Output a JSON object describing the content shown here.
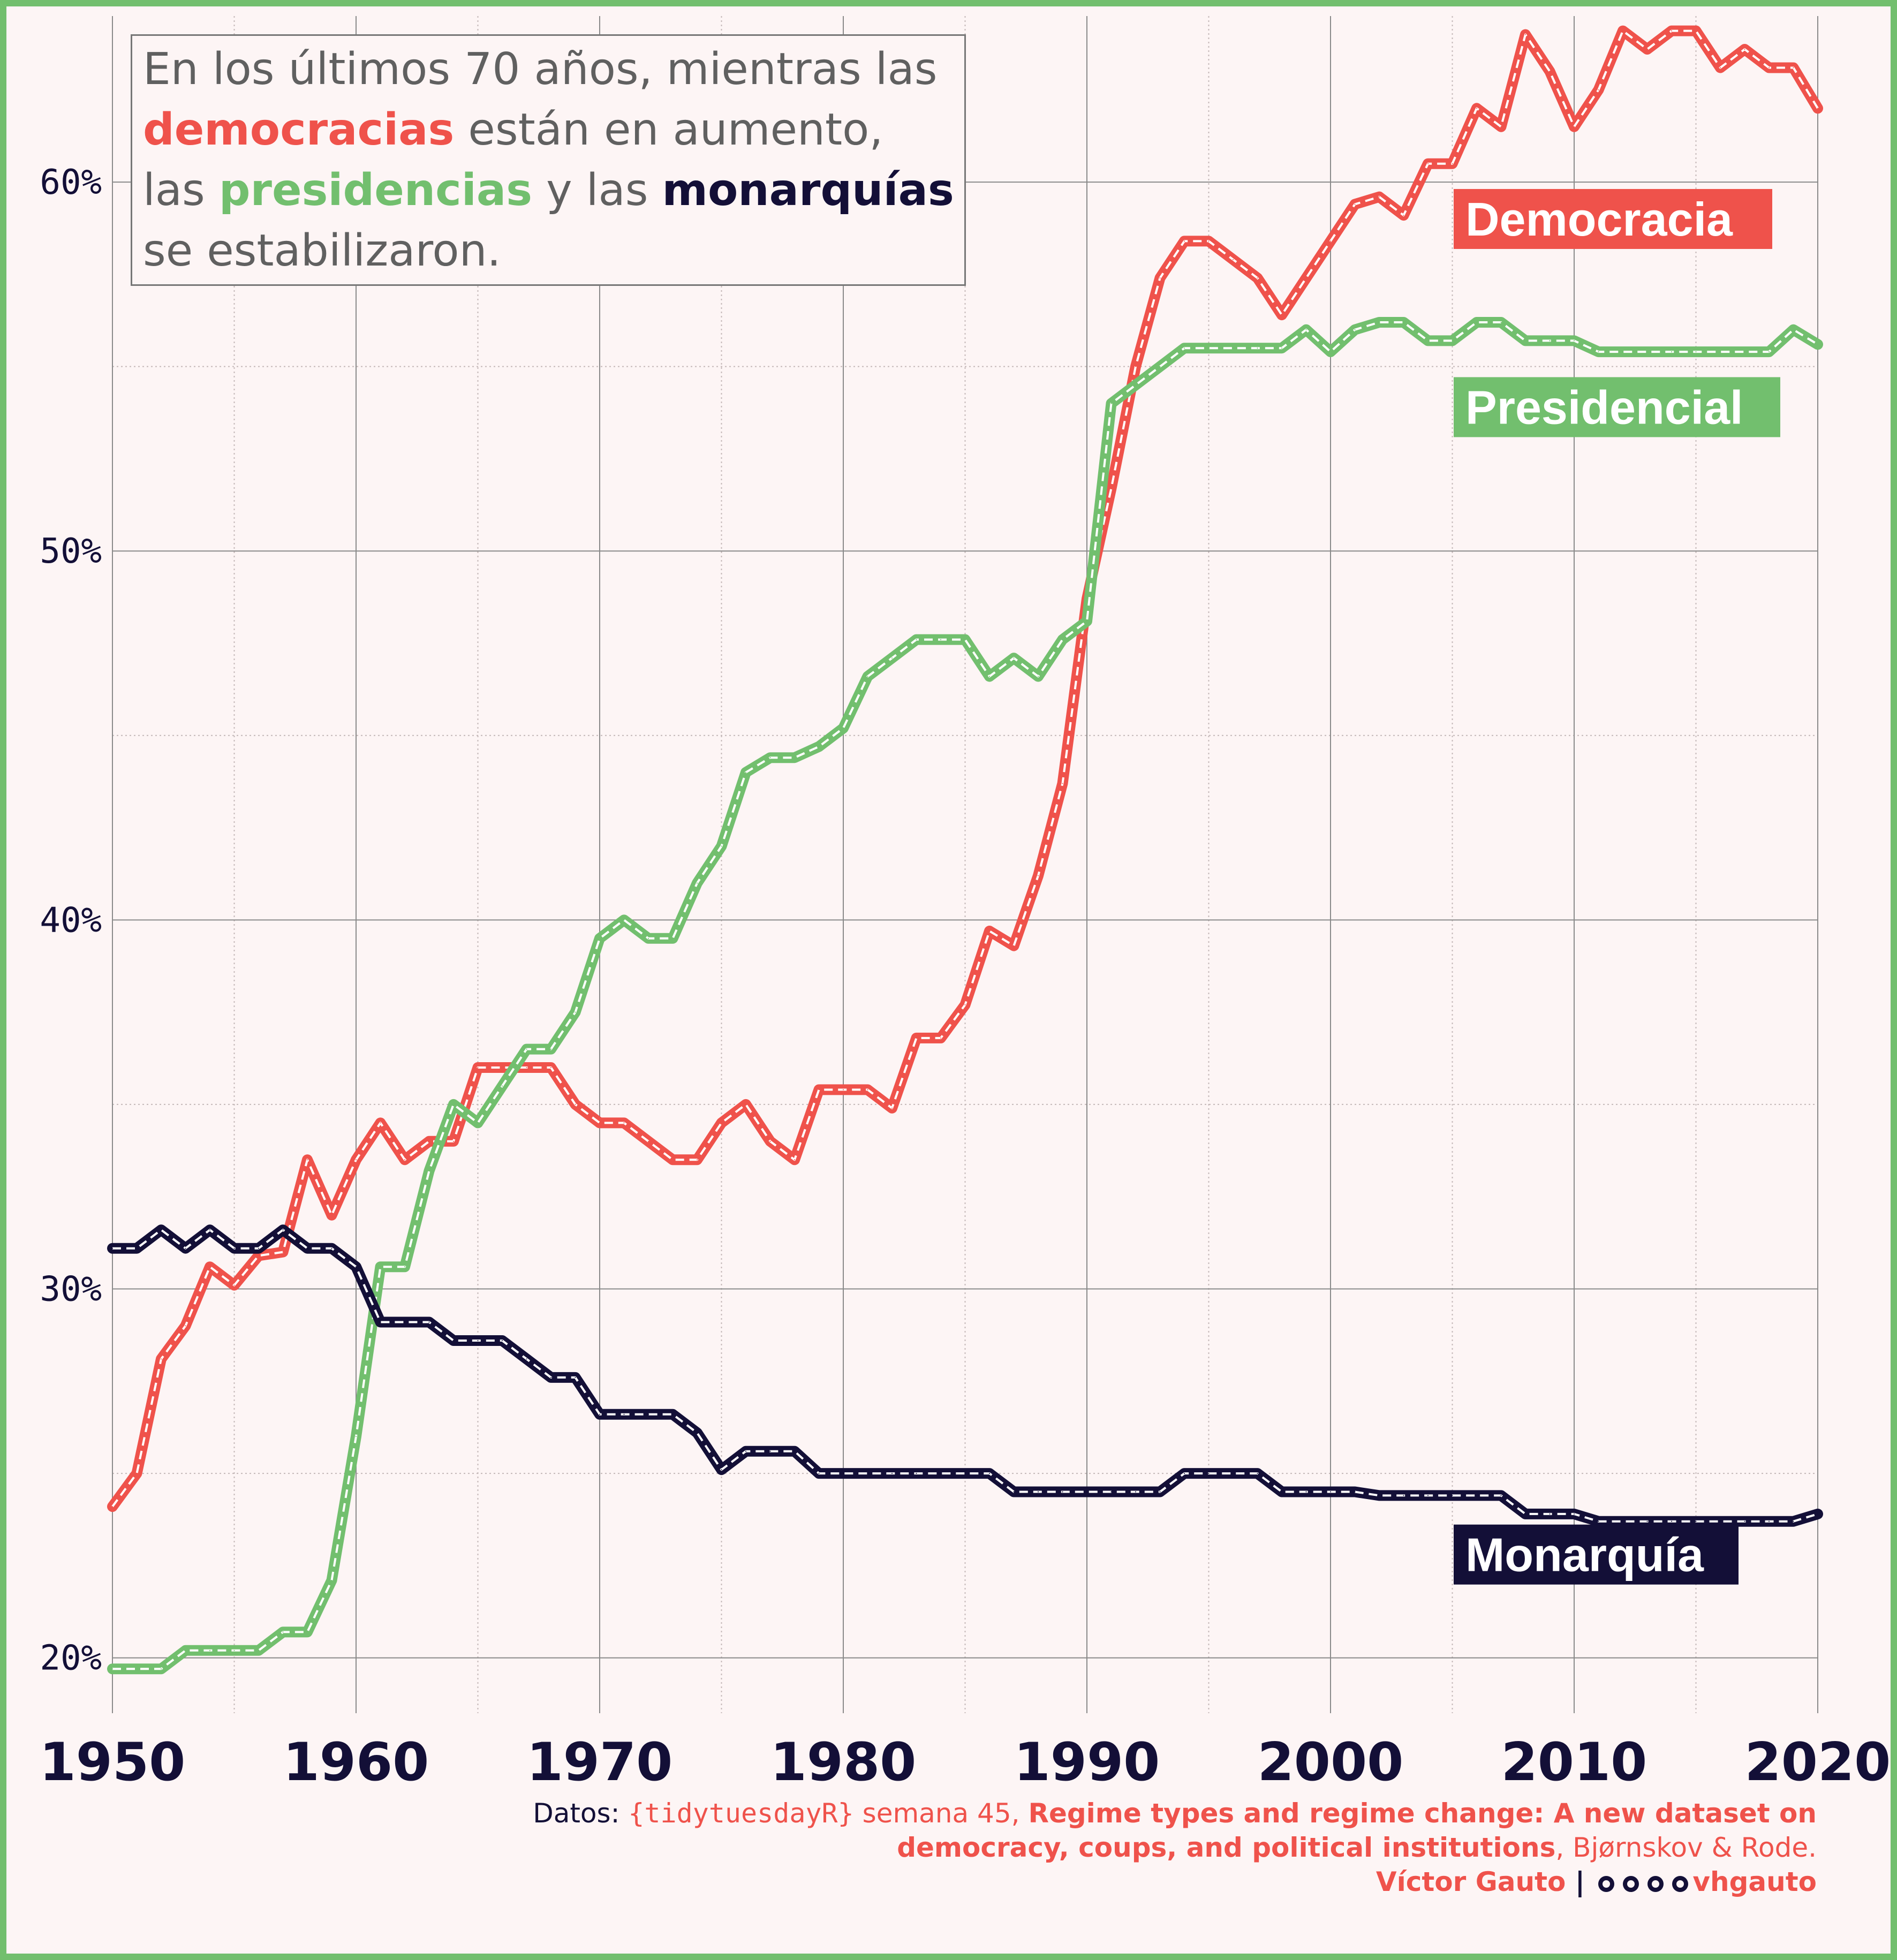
{
  "annotation": {
    "line1": "En los últimos 70 años, mientras las",
    "line2_hl": "democracias",
    "line2_rest": " están en aumento,",
    "line3_a": "las ",
    "line3_hl1": "presidencias",
    "line3_b": " y las ",
    "line3_hl2": "monarquías",
    "line4": "se estabilizaron."
  },
  "caption": {
    "datos_label": "Datos: ",
    "source_mono": "{tidytuesdayR}",
    "week": " semana 45, ",
    "paper_title_1": "Regime types and regime change: A new dataset on",
    "paper_title_2": "democracy, coups, and political institutions",
    "authors": ", Bjørnskov & Rode.",
    "author_name": "Víctor Gauto",
    "separator": " | ",
    "handle": "vhgauto",
    "social_icons": [
      "github-icon",
      "twitter-icon",
      "instagram-icon",
      "mastodon-icon"
    ]
  },
  "colors": {
    "democracia": "#ef524b",
    "presidencial": "#72bf6e",
    "monarquia": "#130f37",
    "background": "#fdf5f5",
    "grid_major": "#8a8a8a",
    "grid_minor": "#c4b8b8"
  },
  "chart_data": {
    "type": "line",
    "title": "",
    "xlabel": "",
    "ylabel": "",
    "xlim": [
      1950,
      2020
    ],
    "ylim": [
      18.5,
      64.5
    ],
    "y_major_ticks": [
      20,
      30,
      40,
      50,
      60
    ],
    "y_minor_ticks": [
      25,
      35,
      45,
      55
    ],
    "y_tick_labels": [
      "20%",
      "30%",
      "40%",
      "50%",
      "60%"
    ],
    "x_major_ticks": [
      1950,
      1960,
      1970,
      1980,
      1990,
      2000,
      2010,
      2020
    ],
    "x_minor_ticks": [
      1955,
      1965,
      1975,
      1985,
      1995,
      2005,
      2015
    ],
    "x_tick_labels": [
      "1950",
      "1960",
      "1970",
      "1980",
      "1990",
      "2000",
      "2010",
      "2020"
    ],
    "grid": true,
    "legend": "direct labels at right end of lines",
    "x": [
      1950,
      1951,
      1952,
      1953,
      1954,
      1955,
      1956,
      1957,
      1958,
      1959,
      1960,
      1961,
      1962,
      1963,
      1964,
      1965,
      1966,
      1967,
      1968,
      1969,
      1970,
      1971,
      1972,
      1973,
      1974,
      1975,
      1976,
      1977,
      1978,
      1979,
      1980,
      1981,
      1982,
      1983,
      1984,
      1985,
      1986,
      1987,
      1988,
      1989,
      1990,
      1991,
      1992,
      1993,
      1994,
      1995,
      1996,
      1997,
      1998,
      1999,
      2000,
      2001,
      2002,
      2003,
      2004,
      2005,
      2006,
      2007,
      2008,
      2009,
      2010,
      2011,
      2012,
      2013,
      2014,
      2015,
      2016,
      2017,
      2018,
      2019,
      2020
    ],
    "series": [
      {
        "name": "Democracia",
        "color_key": "democracia",
        "values": [
          24.1,
          25.0,
          28.1,
          29.0,
          30.6,
          30.1,
          30.9,
          31.0,
          33.5,
          32.0,
          33.5,
          34.5,
          33.5,
          34.0,
          34.0,
          36.0,
          36.0,
          36.0,
          36.0,
          35.0,
          34.5,
          34.5,
          34.0,
          33.5,
          33.5,
          34.5,
          35.0,
          34.0,
          33.5,
          35.4,
          35.4,
          35.4,
          34.9,
          36.8,
          36.8,
          37.7,
          39.7,
          39.3,
          41.2,
          43.7,
          48.7,
          51.7,
          55.0,
          57.4,
          58.4,
          58.4,
          57.9,
          57.4,
          56.4,
          57.4,
          58.4,
          59.4,
          59.6,
          59.1,
          60.5,
          60.5,
          62.0,
          61.5,
          64.0,
          63.0,
          61.5,
          62.5,
          64.1,
          63.6,
          64.1,
          64.1,
          63.1,
          63.6,
          63.1,
          63.1,
          62.0
        ],
        "end_label": "Democracia"
      },
      {
        "name": "Presidencial",
        "color_key": "presidencial",
        "values": [
          19.7,
          19.7,
          19.7,
          20.2,
          20.2,
          20.2,
          20.2,
          20.7,
          20.7,
          22.1,
          26.0,
          30.6,
          30.6,
          33.2,
          35.0,
          34.5,
          35.5,
          36.5,
          36.5,
          37.5,
          39.5,
          40.0,
          39.5,
          39.5,
          41.0,
          42.0,
          44.0,
          44.4,
          44.4,
          44.7,
          45.2,
          46.6,
          47.1,
          47.6,
          47.6,
          47.6,
          46.6,
          47.1,
          46.6,
          47.6,
          48.1,
          54.0,
          54.5,
          55.0,
          55.5,
          55.5,
          55.5,
          55.5,
          55.5,
          56.0,
          55.4,
          56.0,
          56.2,
          56.2,
          55.7,
          55.7,
          56.2,
          56.2,
          55.7,
          55.7,
          55.7,
          55.4,
          55.4,
          55.4,
          55.4,
          55.4,
          55.4,
          55.4,
          55.4,
          56.0,
          55.6
        ],
        "end_label": "Presidencial"
      },
      {
        "name": "Monarquía",
        "color_key": "monarquia",
        "values": [
          31.1,
          31.1,
          31.6,
          31.1,
          31.6,
          31.1,
          31.1,
          31.6,
          31.1,
          31.1,
          30.6,
          29.1,
          29.1,
          29.1,
          28.6,
          28.6,
          28.6,
          28.1,
          27.6,
          27.6,
          26.6,
          26.6,
          26.6,
          26.6,
          26.1,
          25.1,
          25.6,
          25.6,
          25.6,
          25.0,
          25.0,
          25.0,
          25.0,
          25.0,
          25.0,
          25.0,
          25.0,
          24.5,
          24.5,
          24.5,
          24.5,
          24.5,
          24.5,
          24.5,
          25.0,
          25.0,
          25.0,
          25.0,
          24.5,
          24.5,
          24.5,
          24.5,
          24.4,
          24.4,
          24.4,
          24.4,
          24.4,
          24.4,
          23.9,
          23.9,
          23.9,
          23.7,
          23.7,
          23.7,
          23.7,
          23.7,
          23.7,
          23.7,
          23.7,
          23.7,
          23.9
        ],
        "end_label": "Monarquía"
      }
    ]
  }
}
